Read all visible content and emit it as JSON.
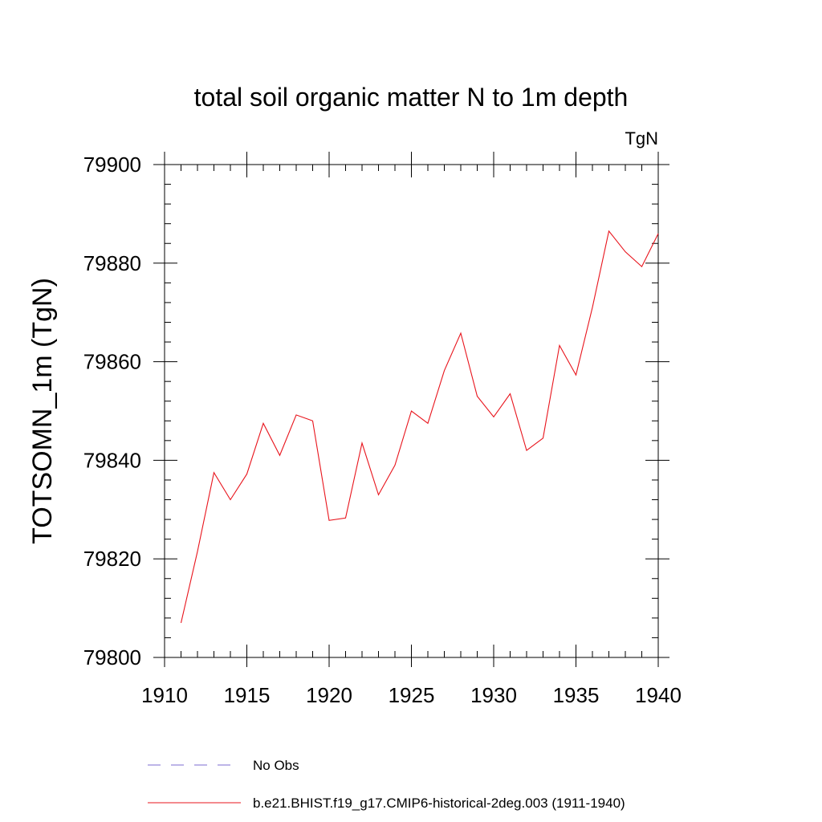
{
  "chart_data": {
    "type": "line",
    "title": "total soil organic matter N to 1m depth",
    "units_label": "TgN",
    "xlabel": "",
    "ylabel": "TOTSOMN_1m  (TgN)",
    "xlim": [
      1910,
      1940
    ],
    "ylim": [
      79800,
      79900
    ],
    "x_ticks": [
      "1910",
      "1915",
      "1920",
      "1925",
      "1930",
      "1935",
      "1940"
    ],
    "y_ticks": [
      "79800",
      "79820",
      "79840",
      "79860",
      "79880",
      "79900"
    ],
    "grid": false,
    "legend_position": "bottom",
    "series": [
      {
        "name": "No Obs",
        "color": "#7b6bd0",
        "dash": "dashed",
        "x": [],
        "y": []
      },
      {
        "name": "b.e21.BHIST.f19_g17.CMIP6-historical-2deg.003 (1911-1940)",
        "color": "#e8141c",
        "dash": "solid",
        "x": [
          1911,
          1912,
          1913,
          1914,
          1915,
          1916,
          1917,
          1918,
          1919,
          1920,
          1921,
          1922,
          1923,
          1924,
          1925,
          1926,
          1927,
          1928,
          1929,
          1930,
          1931,
          1932,
          1933,
          1934,
          1935,
          1936,
          1937,
          1938,
          1939,
          1940
        ],
        "y": [
          79807.0,
          79821.5,
          79837.5,
          79832.0,
          79837.2,
          79847.5,
          79841.0,
          79849.2,
          79848.0,
          79827.8,
          79828.3,
          79843.5,
          79833.0,
          79839.0,
          79850.0,
          79847.5,
          79858.2,
          79865.8,
          79853.0,
          79848.8,
          79853.5,
          79842.0,
          79844.5,
          79863.3,
          79857.3,
          79871.0,
          79886.5,
          79882.3,
          79879.3,
          79886.0
        ]
      }
    ]
  }
}
